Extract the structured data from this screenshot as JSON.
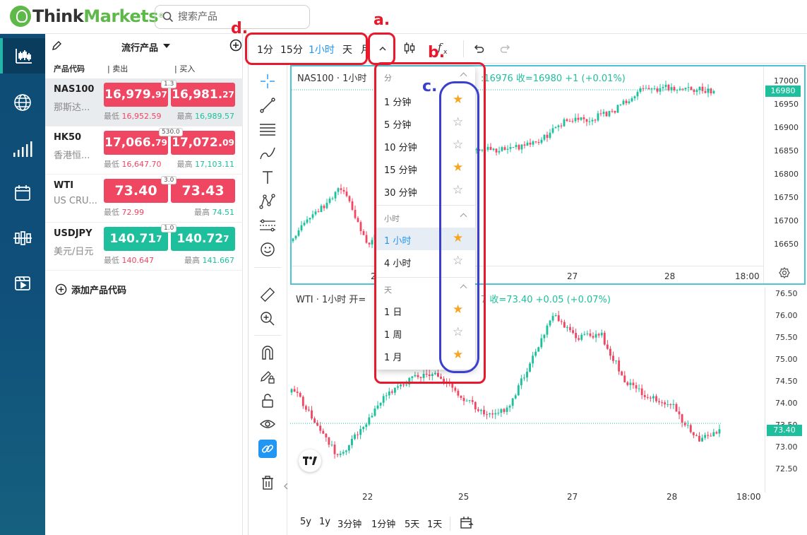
{
  "header": {
    "logo": {
      "think": "Think",
      "markets": "Markets",
      "reg": "®"
    },
    "search": {
      "placeholder": "搜索产品"
    }
  },
  "watchlist": {
    "title": "流行产品",
    "columns": {
      "code": "产品代码",
      "sell": "| 卖出",
      "buy": "| 买入"
    },
    "rows": [
      {
        "code": "NAS100",
        "name": "那斯达...",
        "spread": "1.3",
        "sell_main": "16,979.",
        "sell_small": "97",
        "buy_main": "16,981.",
        "buy_small": "27",
        "low_label": "最低",
        "low": "16,952.59",
        "high_label": "最高",
        "high": "16,989.57",
        "color": "red"
      },
      {
        "code": "HK50",
        "name": "香港恒...",
        "spread": "530.0",
        "sell_main": "17,066.",
        "sell_small": "79",
        "buy_main": "17,072.",
        "buy_small": "09",
        "low_label": "最低",
        "low": "16,647.70",
        "high_label": "最高",
        "high": "17,103.11",
        "color": "red"
      },
      {
        "code": "WTI",
        "name": "US CRU...",
        "spread": "3.0",
        "sell_main": "73.40",
        "sell_small": "",
        "buy_main": "73.43",
        "buy_small": "",
        "low_label": "最低",
        "low": "72.99",
        "high_label": "最高",
        "high": "74.51",
        "color": "red"
      },
      {
        "code": "USDJPY",
        "name": "美元/日元",
        "spread": "1.0",
        "sell_main": "140.71",
        "sell_small": "7",
        "buy_main": "140.72",
        "buy_small": "7",
        "low_label": "最低",
        "low": "140.647",
        "high_label": "最高",
        "high": "141.667",
        "color": "green"
      }
    ],
    "add_symbol": "添加产品代码"
  },
  "chart_toolbar": {
    "timeframes": [
      "1分",
      "15分",
      "1小时",
      "天",
      "月"
    ],
    "active_timeframe": "1小时"
  },
  "interval_menu": {
    "sections": [
      {
        "title": "分",
        "items": [
          {
            "label": "1 分钟",
            "starred": true
          },
          {
            "label": "5 分钟",
            "starred": false
          },
          {
            "label": "10 分钟",
            "starred": false
          },
          {
            "label": "15 分钟",
            "starred": true
          },
          {
            "label": "30 分钟",
            "starred": false
          }
        ]
      },
      {
        "title": "小时",
        "items": [
          {
            "label": "1 小时",
            "starred": true,
            "active": true
          },
          {
            "label": "4 小时",
            "starred": false
          }
        ]
      },
      {
        "title": "天",
        "items": [
          {
            "label": "1 日",
            "starred": true
          },
          {
            "label": "1 周",
            "starred": false
          },
          {
            "label": "1 月",
            "starred": true
          }
        ]
      }
    ]
  },
  "pane1": {
    "title_prefix": "NAS100 · 1小时",
    "title_tail": ":16976  收=16980  +1 (+0.01%)",
    "y_ticks": [
      "17000",
      "16950",
      "16900",
      "16850",
      "16800",
      "16750",
      "16700",
      "16650"
    ],
    "price_tag": "16980",
    "x_ticks": [
      "2",
      "27",
      "28",
      "18:00"
    ]
  },
  "pane2": {
    "title_prefix": "WTI · 1小时  开=",
    "title_tail": "7  收=73.40  +0.05 (+0.07%)",
    "y_ticks": [
      "76.50",
      "76.00",
      "75.50",
      "75.00",
      "74.50",
      "74.00",
      "73.50",
      "73.00",
      "72.50"
    ],
    "price_tag": "73.40",
    "x_ticks": [
      "22",
      "25",
      "27",
      "28",
      "18:00"
    ]
  },
  "bottom_ranges": [
    "5y",
    "1y",
    "3分钟",
    "1分钟",
    "5天",
    "1天"
  ],
  "annotations": {
    "a": "a.",
    "b": "b.",
    "c": "c.",
    "d": "d."
  },
  "colors": {
    "up": "#1dbf9c",
    "down": "#ef4662",
    "accent": "#2196f3",
    "star": "#f5a623"
  }
}
